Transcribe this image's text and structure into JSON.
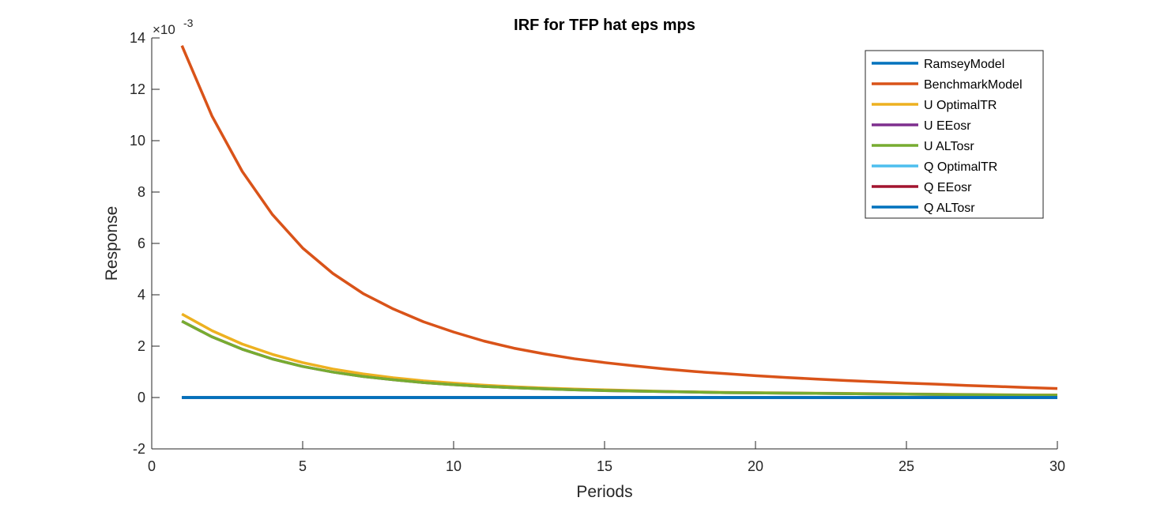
{
  "chart_data": {
    "type": "line",
    "title": "IRF for TFP hat eps mps",
    "xlabel": "Periods",
    "ylabel": "Response",
    "exponent_label": "×10",
    "exponent_power": "-3",
    "xlim": [
      0,
      30
    ],
    "ylim": [
      -2,
      14
    ],
    "xticks": [
      "0",
      "5",
      "10",
      "15",
      "20",
      "25",
      "30"
    ],
    "yticks": [
      "-2",
      "0",
      "2",
      "4",
      "6",
      "8",
      "10",
      "12",
      "14"
    ],
    "legend_position": "top-right",
    "grid": false,
    "x": [
      1,
      2,
      3,
      4,
      5,
      6,
      7,
      8,
      9,
      10,
      11,
      12,
      13,
      14,
      15,
      16,
      17,
      18,
      19,
      20,
      21,
      22,
      23,
      24,
      25,
      26,
      27,
      28,
      29,
      30
    ],
    "series": [
      {
        "name": "RamseyModel",
        "color": "#0072BD",
        "values": [
          0,
          0,
          0,
          0,
          0,
          0,
          0,
          0,
          0,
          0,
          0,
          0,
          0,
          0,
          0,
          0,
          0,
          0,
          0,
          0,
          0,
          0,
          0,
          0,
          0,
          0,
          0,
          0,
          0,
          0
        ]
      },
      {
        "name": "BenchmarkModel",
        "color": "#D95319",
        "values": [
          13.7,
          10.95,
          8.8,
          7.12,
          5.82,
          4.83,
          4.05,
          3.45,
          2.95,
          2.55,
          2.2,
          1.92,
          1.7,
          1.51,
          1.36,
          1.23,
          1.11,
          1.01,
          0.93,
          0.85,
          0.78,
          0.72,
          0.66,
          0.61,
          0.56,
          0.52,
          0.47,
          0.43,
          0.39,
          0.35
        ]
      },
      {
        "name": "U OptimalTR",
        "color": "#EDB120",
        "values": [
          3.25,
          2.6,
          2.08,
          1.68,
          1.36,
          1.11,
          0.92,
          0.77,
          0.65,
          0.56,
          0.48,
          0.42,
          0.37,
          0.33,
          0.3,
          0.27,
          0.24,
          0.22,
          0.2,
          0.19,
          0.18,
          0.17,
          0.16,
          0.15,
          0.14,
          0.13,
          0.12,
          0.11,
          0.1,
          0.1
        ]
      },
      {
        "name": "U EEosr",
        "color": "#7E2F8E",
        "values": [
          2.97,
          2.36,
          1.88,
          1.5,
          1.21,
          0.99,
          0.82,
          0.69,
          0.58,
          0.5,
          0.43,
          0.38,
          0.34,
          0.3,
          0.27,
          0.25,
          0.23,
          0.21,
          0.19,
          0.18,
          0.17,
          0.16,
          0.15,
          0.14,
          0.13,
          0.12,
          0.11,
          0.1,
          0.09,
          0.09
        ]
      },
      {
        "name": "U ALTosr",
        "color": "#77AC30",
        "values": [
          2.97,
          2.36,
          1.88,
          1.5,
          1.21,
          0.99,
          0.82,
          0.69,
          0.58,
          0.5,
          0.43,
          0.38,
          0.34,
          0.3,
          0.27,
          0.25,
          0.23,
          0.21,
          0.19,
          0.18,
          0.17,
          0.16,
          0.15,
          0.14,
          0.13,
          0.12,
          0.11,
          0.1,
          0.09,
          0.09
        ]
      },
      {
        "name": "Q OptimalTR",
        "color": "#4DBEEE",
        "values": [
          0,
          0,
          0,
          0,
          0,
          0,
          0,
          0,
          0,
          0,
          0,
          0,
          0,
          0,
          0,
          0,
          0,
          0,
          0,
          0,
          0,
          0,
          0,
          0,
          0,
          0,
          0,
          0,
          0,
          0
        ]
      },
      {
        "name": "Q EEosr",
        "color": "#A2142F",
        "values": [
          0,
          0,
          0,
          0,
          0,
          0,
          0,
          0,
          0,
          0,
          0,
          0,
          0,
          0,
          0,
          0,
          0,
          0,
          0,
          0,
          0,
          0,
          0,
          0,
          0,
          0,
          0,
          0,
          0,
          0
        ]
      },
      {
        "name": "Q ALTosr",
        "color": "#0072BD",
        "values": [
          0,
          0,
          0,
          0,
          0,
          0,
          0,
          0,
          0,
          0,
          0,
          0,
          0,
          0,
          0,
          0,
          0,
          0,
          0,
          0,
          0,
          0,
          0,
          0,
          0,
          0,
          0,
          0,
          0,
          0
        ]
      }
    ]
  }
}
